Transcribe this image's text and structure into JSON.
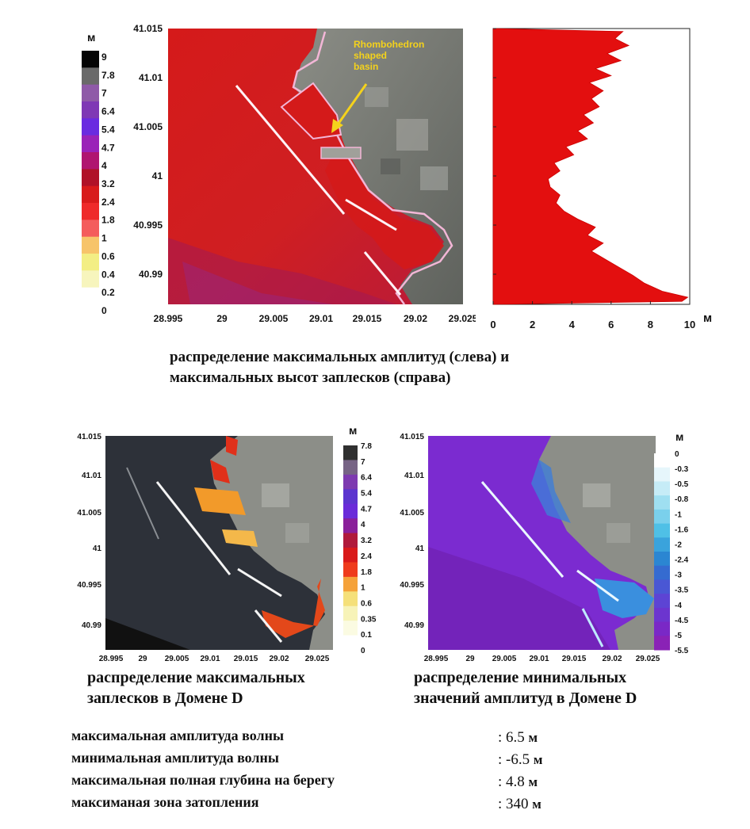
{
  "figure": {
    "annotation": "Rhombohedron shaped basin",
    "caption_top_line1": "распределение максимальных амплитуд (слева) и",
    "caption_top_line2": "максимальных высот заплесков  (справа)",
    "caption_bl_line1": "распределение максимальных",
    "caption_bl_line2": "заплесков в Домене D",
    "caption_br_line1": "распределение минимальных",
    "caption_br_line2": "значений амплитуд в Домене D"
  },
  "summary": [
    {
      "label": "максимальная амплитуда волны",
      "value": "6.5",
      "unit": "м"
    },
    {
      "label": "минимальная амплитуда волны",
      "value": "-6.5",
      "unit": "м"
    },
    {
      "label": "максимальная полная глубина на берегу",
      "value": "4.8",
      "unit": "м"
    },
    {
      "label": "максиманая зона затопления",
      "value": "340",
      "unit": "м"
    }
  ],
  "colors": {
    "sea_red": "#d81818",
    "land_gray": "#7d7f7a",
    "annotation_yellow": "#f4d21c",
    "sea_dark": "#2d3139",
    "sea_purple": "#7b2bd0",
    "runup_fill": "#e30f0f"
  },
  "chart_data": [
    {
      "type": "heatmap",
      "unit": "м",
      "x_ticks": [
        "28.995",
        "29",
        "29.005",
        "29.01",
        "29.015",
        "29.02",
        "29.025"
      ],
      "y_ticks": [
        "41.015",
        "41.01",
        "41.005",
        "41",
        "40.995",
        "40.99"
      ],
      "xlim": [
        28.995,
        29.025
      ],
      "ylim": [
        40.9875,
        41.015
      ],
      "colorbar": {
        "labels": [
          "9",
          "7.8",
          "7",
          "6.4",
          "5.4",
          "4.7",
          "4",
          "3.2",
          "2.4",
          "1.8",
          "1",
          "0.6",
          "0.4",
          "0.2",
          "0"
        ],
        "colors": [
          "#050505",
          "#6a6a6a",
          "#8f5aa8",
          "#7f38b5",
          "#6a2be0",
          "#9a22b8",
          "#b01570",
          "#b01228",
          "#d81b1b",
          "#ef2a2a",
          "#f45c5c",
          "#f7c46a",
          "#f3ee84",
          "#f7f5bd",
          "#ffffff"
        ]
      }
    },
    {
      "type": "area",
      "unit": "м",
      "xlim": [
        0,
        10
      ],
      "x_ticks": [
        "0",
        "2",
        "4",
        "6",
        "8",
        "10"
      ],
      "runup_profile": [
        [
          41.0147,
          6.6
        ],
        [
          41.014,
          6.2
        ],
        [
          41.0133,
          6.9
        ],
        [
          41.0125,
          5.8
        ],
        [
          41.0118,
          6.5
        ],
        [
          41.011,
          5.2
        ],
        [
          41.0103,
          6.0
        ],
        [
          41.0096,
          4.9
        ],
        [
          41.0088,
          5.6
        ],
        [
          41.008,
          5.0
        ],
        [
          41.0072,
          5.4
        ],
        [
          41.0064,
          4.6
        ],
        [
          41.0056,
          5.1
        ],
        [
          41.0048,
          4.3
        ],
        [
          41.004,
          4.8
        ],
        [
          41.0032,
          3.7
        ],
        [
          41.0024,
          4.1
        ],
        [
          41.0016,
          3.1
        ],
        [
          41.0008,
          3.4
        ],
        [
          41.0,
          2.8
        ],
        [
          40.9992,
          2.9
        ],
        [
          40.9984,
          3.4
        ],
        [
          40.9976,
          3.2
        ],
        [
          40.9968,
          3.6
        ],
        [
          40.996,
          4.3
        ],
        [
          40.9952,
          5.2
        ],
        [
          40.9944,
          4.8
        ],
        [
          40.9936,
          5.6
        ],
        [
          40.9928,
          5.0
        ],
        [
          40.992,
          5.7
        ],
        [
          40.9912,
          6.4
        ],
        [
          40.9904,
          7.1
        ],
        [
          40.9896,
          7.7
        ],
        [
          40.9888,
          8.6
        ],
        [
          40.9882,
          9.9
        ],
        [
          40.9878,
          9.6
        ]
      ]
    },
    {
      "type": "heatmap",
      "unit": "м",
      "x_ticks": [
        "28.995",
        "29",
        "29.005",
        "29.01",
        "29.015",
        "29.02",
        "29.025"
      ],
      "y_ticks": [
        "41.015",
        "41.01",
        "41.005",
        "41",
        "40.995",
        "40.99"
      ],
      "colorbar": {
        "labels": [
          "7.8",
          "7",
          "6.4",
          "5.4",
          "4.7",
          "4",
          "3.2",
          "2.4",
          "1.8",
          "1",
          "0.6",
          "0.35",
          "0.1",
          "0"
        ],
        "colors": [
          "#303030",
          "#776485",
          "#7e3ab0",
          "#5c35cf",
          "#6a2bd9",
          "#8a1f9a",
          "#b01a3b",
          "#d91a1a",
          "#ef3b1c",
          "#f5a23a",
          "#f5e07a",
          "#f7f3b8",
          "#fbfbe2",
          "#ffffff"
        ]
      }
    },
    {
      "type": "heatmap",
      "unit": "м",
      "x_ticks": [
        "28.995",
        "29",
        "29.005",
        "29.01",
        "29.015",
        "29.02",
        "29.025"
      ],
      "y_ticks": [
        "41.015",
        "41.01",
        "41.005",
        "41",
        "40.995",
        "40.99"
      ],
      "colorbar": {
        "labels": [
          "0",
          "-0.3",
          "-0.5",
          "-0.8",
          "-1",
          "-1.6",
          "-2",
          "-2.4",
          "-3",
          "-3.5",
          "-4",
          "-4.5",
          "-5",
          "-5.5"
        ],
        "colors": [
          "#ffffff",
          "#e6f6fb",
          "#c6ecf7",
          "#9fdff1",
          "#7ad0ec",
          "#4fc0e6",
          "#3aa3dc",
          "#2b86d2",
          "#356bd0",
          "#4a57d4",
          "#5d44d4",
          "#6c35cf",
          "#7a28c6",
          "#8a22b6"
        ]
      }
    }
  ]
}
